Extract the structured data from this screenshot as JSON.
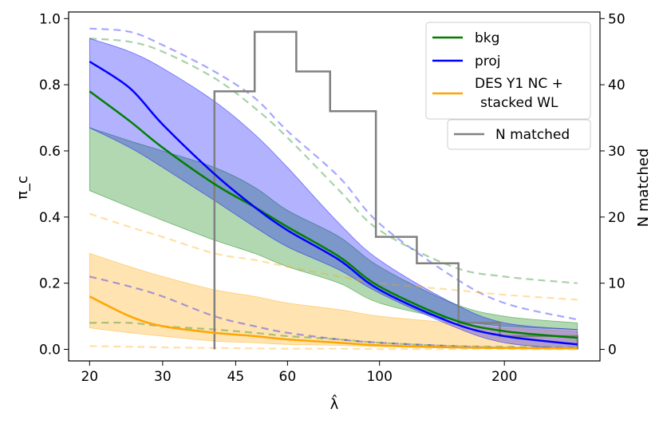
{
  "chart_data": {
    "type": "line",
    "x_scale": "log",
    "xlabel": "λ̂",
    "ylabel_left": "π_c",
    "ylabel_right": "N matched",
    "xlim": [
      17.8,
      340
    ],
    "ylim_left": [
      -0.035,
      1.02
    ],
    "ylim_right": [
      -1.75,
      51
    ],
    "x_ticks": [
      20,
      30,
      45,
      60,
      100,
      200
    ],
    "x_tick_labels": [
      "20",
      "30",
      "45",
      "60",
      "100",
      "200"
    ],
    "y_ticks_left": [
      0.0,
      0.2,
      0.4,
      0.6,
      0.8,
      1.0
    ],
    "y_tick_labels_left": [
      "0.0",
      "0.2",
      "0.4",
      "0.6",
      "0.8",
      "1.0"
    ],
    "y_ticks_right": [
      0,
      10,
      20,
      30,
      40,
      50
    ],
    "y_tick_labels_right": [
      "0",
      "10",
      "20",
      "30",
      "40",
      "50"
    ],
    "x": [
      20,
      25,
      30,
      40,
      50,
      60,
      80,
      100,
      150,
      200,
      300
    ],
    "series": [
      {
        "name": "bkg",
        "color": "#007f00",
        "axis": "left",
        "values": [
          0.78,
          0.69,
          0.61,
          0.5,
          0.43,
          0.37,
          0.28,
          0.19,
          0.09,
          0.055,
          0.035
        ],
        "band_lower": [
          0.48,
          0.43,
          0.39,
          0.33,
          0.29,
          0.25,
          0.2,
          0.14,
          0.09,
          0.07,
          0.06
        ],
        "band_upper": [
          0.67,
          0.63,
          0.6,
          0.55,
          0.49,
          0.42,
          0.34,
          0.25,
          0.14,
          0.1,
          0.08
        ],
        "dashed_lower": [
          0.08,
          0.08,
          0.07,
          0.06,
          0.05,
          0.04,
          0.03,
          0.02,
          0.01,
          0.008,
          0.005
        ],
        "dashed_upper": [
          0.94,
          0.93,
          0.9,
          0.82,
          0.73,
          0.64,
          0.48,
          0.36,
          0.25,
          0.22,
          0.2
        ]
      },
      {
        "name": "proj",
        "color": "#0000ff",
        "axis": "left",
        "values": [
          0.87,
          0.79,
          0.68,
          0.53,
          0.43,
          0.36,
          0.27,
          0.18,
          0.08,
          0.04,
          0.015
        ],
        "band_lower": [
          0.67,
          0.61,
          0.55,
          0.45,
          0.37,
          0.31,
          0.24,
          0.17,
          0.07,
          0.02,
          0.0
        ],
        "band_upper": [
          0.94,
          0.9,
          0.85,
          0.75,
          0.65,
          0.55,
          0.38,
          0.27,
          0.14,
          0.08,
          0.06
        ],
        "dashed_lower": [
          0.22,
          0.19,
          0.16,
          0.1,
          0.07,
          0.05,
          0.03,
          0.02,
          0.01,
          0.005,
          0.003
        ],
        "dashed_upper": [
          0.97,
          0.96,
          0.92,
          0.84,
          0.76,
          0.66,
          0.52,
          0.38,
          0.22,
          0.14,
          0.09
        ]
      },
      {
        "name": "DES Y1 NC + stacked WL",
        "color": "#ffa500",
        "axis": "left",
        "values": [
          0.16,
          0.1,
          0.07,
          0.05,
          0.04,
          0.03,
          0.02,
          0.012,
          0.006,
          0.004,
          0.003
        ],
        "band_lower": [
          0.065,
          0.05,
          0.04,
          0.025,
          0.02,
          0.015,
          0.012,
          0.008,
          0.004,
          0.002,
          0.001
        ],
        "band_upper": [
          0.29,
          0.25,
          0.22,
          0.18,
          0.16,
          0.14,
          0.12,
          0.1,
          0.08,
          0.065,
          0.055
        ],
        "dashed_lower": [
          0.01,
          0.008,
          0.006,
          0.004,
          0.003,
          0.002,
          0.002,
          0.001,
          0.001,
          0.001,
          0.0
        ],
        "dashed_upper": [
          0.41,
          0.37,
          0.34,
          0.29,
          0.27,
          0.25,
          0.22,
          0.2,
          0.18,
          0.165,
          0.15
        ]
      }
    ],
    "histogram": {
      "name": "N matched",
      "color": "#808080",
      "axis": "right",
      "edges": [
        40,
        50,
        63,
        76,
        98,
        123,
        155,
        195,
        300
      ],
      "counts": [
        39,
        48,
        42,
        36,
        17,
        13,
        4,
        2
      ]
    },
    "legend": {
      "placement": "top-right",
      "entries": [
        "bkg",
        "proj",
        "DES Y1 NC +",
        "stacked WL",
        "N matched"
      ]
    }
  }
}
